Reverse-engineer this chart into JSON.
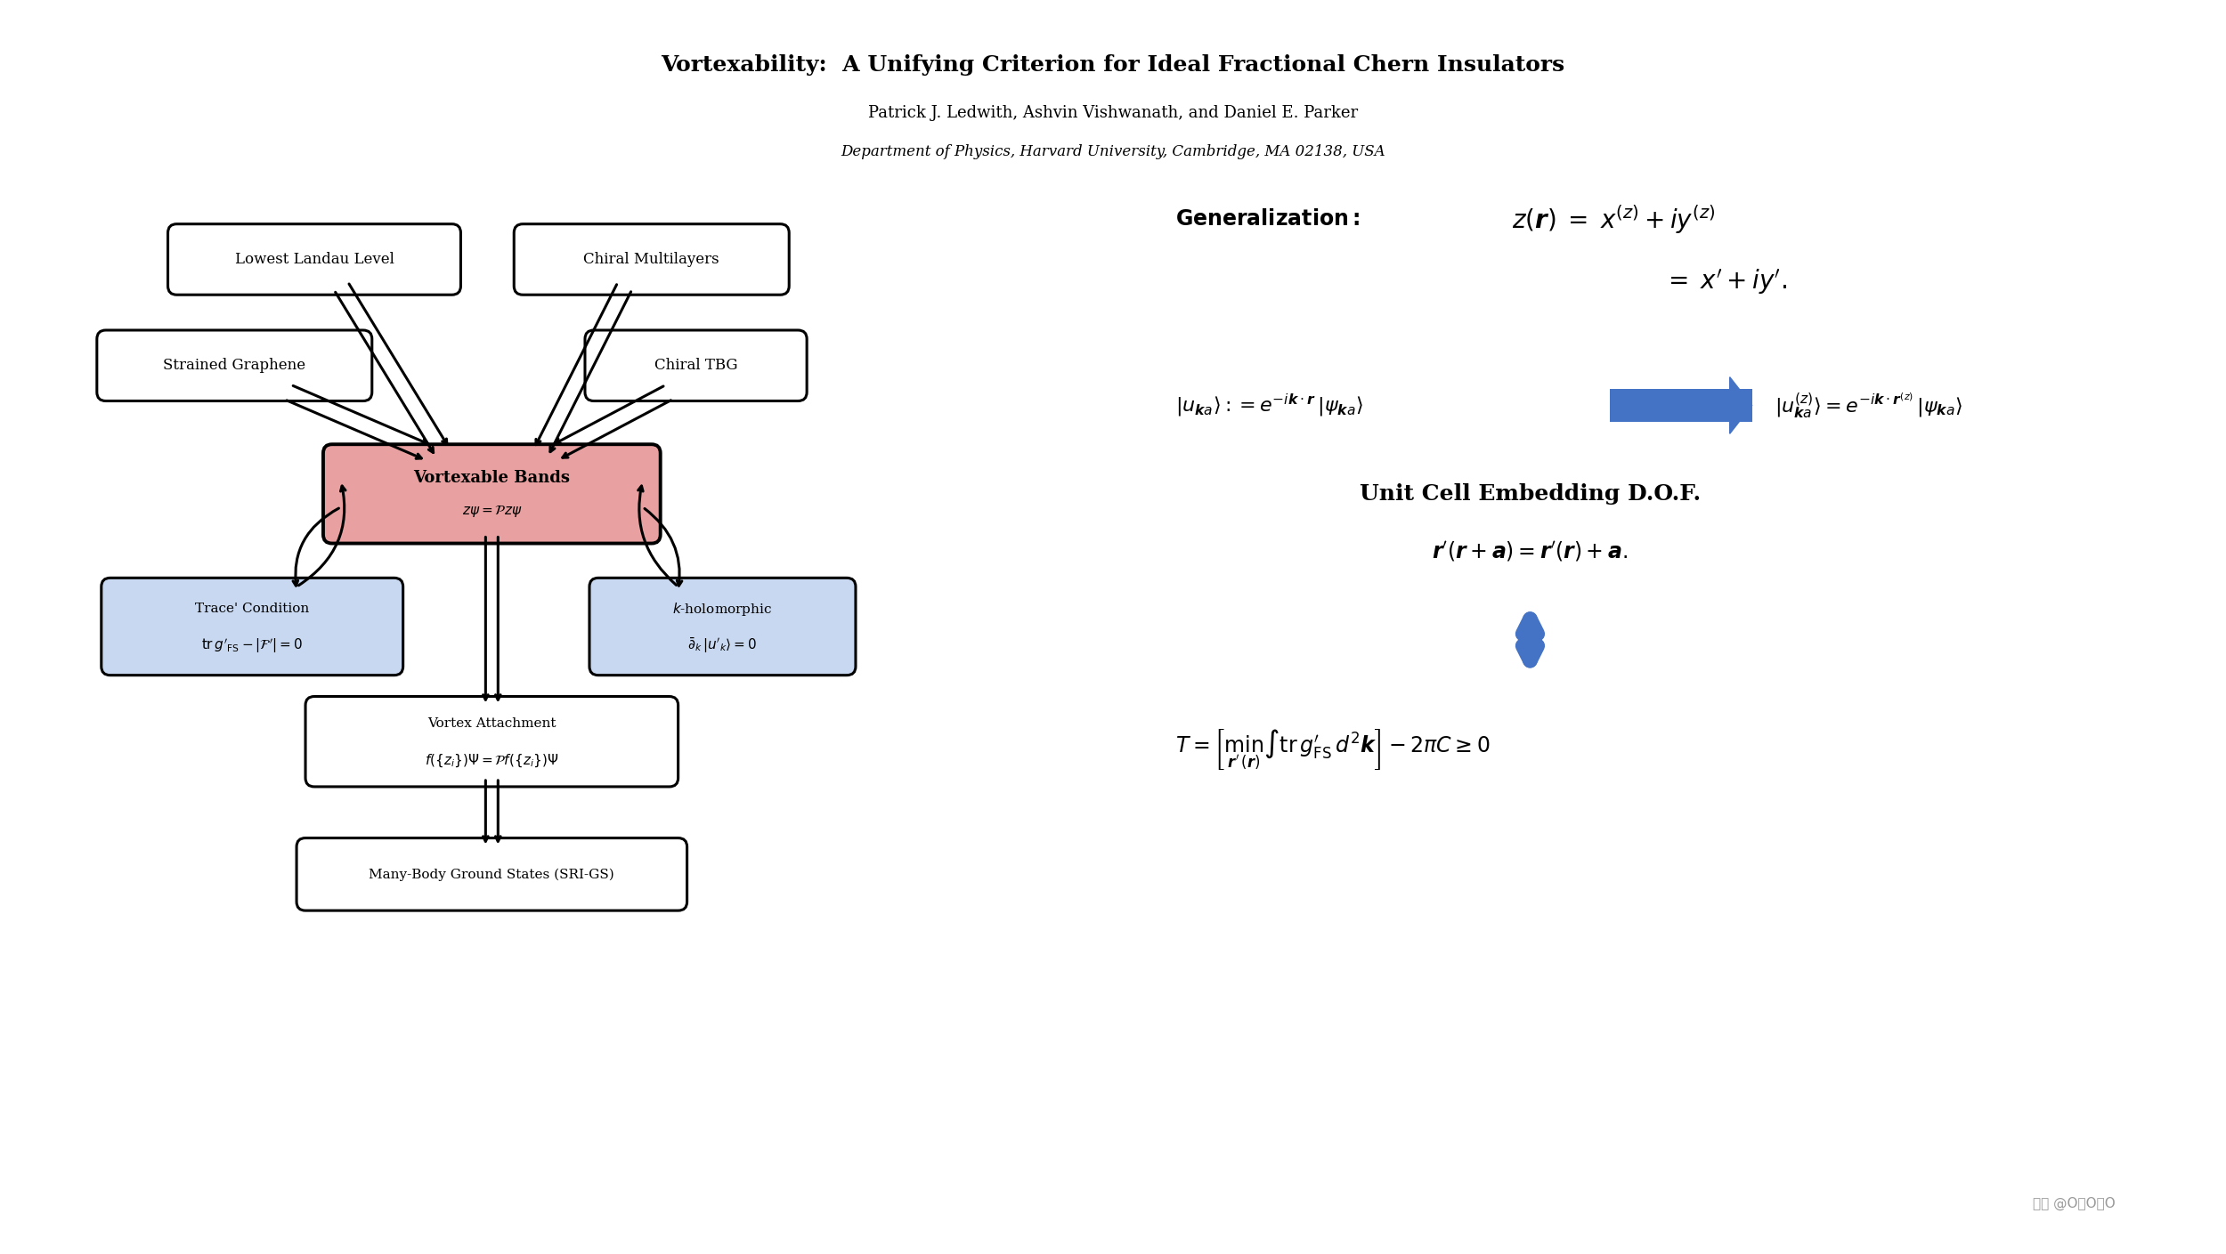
{
  "title": "Vortexability:  A Unifying Criterion for Ideal Fractional Chern Insulators",
  "authors": "Patrick J. Ledwith, Ashvin Vishwanath, and Daniel E. Parker",
  "affiliation": "Department of Physics, Harvard University, Cambridge, MA 02138, USA",
  "bg_color": "#ffffff",
  "text_color": "#000000",
  "vortex_box_bg": "#e8a0a0",
  "trace_box_bg": "#c8d8f0",
  "kholo_box_bg": "#c8d8f0",
  "arrow_blue": "#4472c4",
  "watermark": "知乎 @O空O扯O"
}
